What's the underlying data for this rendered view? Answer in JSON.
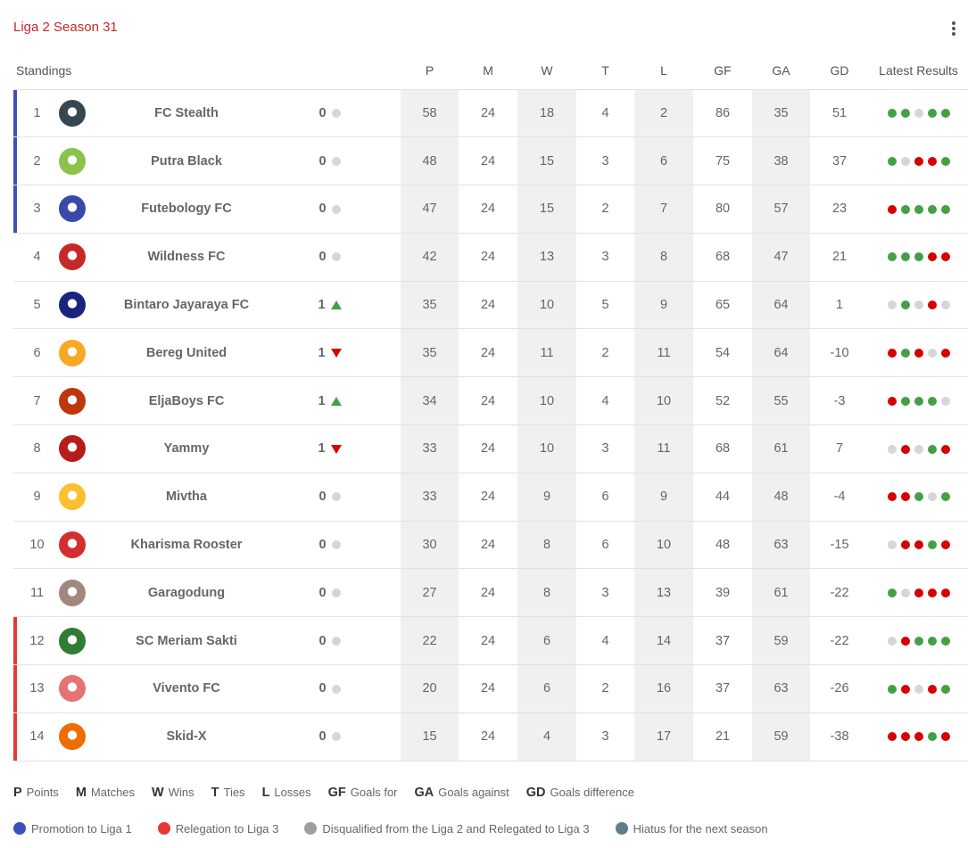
{
  "header": {
    "title": "Liga 2 Season 31"
  },
  "columns": {
    "label": "Standings",
    "p": "P",
    "m": "M",
    "w": "W",
    "t": "T",
    "l": "L",
    "gf": "GF",
    "ga": "GA",
    "gd": "GD",
    "results": "Latest Results"
  },
  "colors": {
    "promotion": "#3f51b5",
    "relegation": "#e53935",
    "disqualified": "#9e9e9e",
    "hiatus": "#607d8b",
    "win": "#43a047",
    "loss": "#d50000",
    "draw": "#d6d6d6"
  },
  "rows": [
    {
      "pos": "1",
      "team": "FC Stealth",
      "logo_color": "#37474f",
      "zone": "promotion",
      "change": "0",
      "trend": "same",
      "p": "58",
      "m": "24",
      "w": "18",
      "t": "4",
      "l": "2",
      "gf": "86",
      "ga": "35",
      "gd": "51",
      "results": [
        "W",
        "W",
        "D",
        "W",
        "W"
      ]
    },
    {
      "pos": "2",
      "team": "Putra Black",
      "logo_color": "#8bc34a",
      "zone": "promotion",
      "change": "0",
      "trend": "same",
      "p": "48",
      "m": "24",
      "w": "15",
      "t": "3",
      "l": "6",
      "gf": "75",
      "ga": "38",
      "gd": "37",
      "results": [
        "W",
        "D",
        "L",
        "L",
        "W"
      ]
    },
    {
      "pos": "3",
      "team": "Futebology FC",
      "logo_color": "#3949ab",
      "zone": "promotion",
      "change": "0",
      "trend": "same",
      "p": "47",
      "m": "24",
      "w": "15",
      "t": "2",
      "l": "7",
      "gf": "80",
      "ga": "57",
      "gd": "23",
      "results": [
        "L",
        "W",
        "W",
        "W",
        "W"
      ]
    },
    {
      "pos": "4",
      "team": "Wildness FC",
      "logo_color": "#c62828",
      "zone": "",
      "change": "0",
      "trend": "same",
      "p": "42",
      "m": "24",
      "w": "13",
      "t": "3",
      "l": "8",
      "gf": "68",
      "ga": "47",
      "gd": "21",
      "results": [
        "W",
        "W",
        "W",
        "L",
        "L"
      ]
    },
    {
      "pos": "5",
      "team": "Bintaro Jayaraya FC",
      "logo_color": "#1a237e",
      "zone": "",
      "change": "1",
      "trend": "up",
      "p": "35",
      "m": "24",
      "w": "10",
      "t": "5",
      "l": "9",
      "gf": "65",
      "ga": "64",
      "gd": "1",
      "results": [
        "D",
        "W",
        "D",
        "L",
        "D"
      ]
    },
    {
      "pos": "6",
      "team": "Bereg United",
      "logo_color": "#f9a825",
      "zone": "",
      "change": "1",
      "trend": "down",
      "p": "35",
      "m": "24",
      "w": "11",
      "t": "2",
      "l": "11",
      "gf": "54",
      "ga": "64",
      "gd": "-10",
      "results": [
        "L",
        "W",
        "L",
        "D",
        "L"
      ]
    },
    {
      "pos": "7",
      "team": "EljaBoys FC",
      "logo_color": "#bf360c",
      "zone": "",
      "change": "1",
      "trend": "up",
      "p": "34",
      "m": "24",
      "w": "10",
      "t": "4",
      "l": "10",
      "gf": "52",
      "ga": "55",
      "gd": "-3",
      "results": [
        "L",
        "W",
        "W",
        "W",
        "D"
      ]
    },
    {
      "pos": "8",
      "team": "Yammy",
      "logo_color": "#b71c1c",
      "zone": "",
      "change": "1",
      "trend": "down",
      "p": "33",
      "m": "24",
      "w": "10",
      "t": "3",
      "l": "11",
      "gf": "68",
      "ga": "61",
      "gd": "7",
      "results": [
        "D",
        "L",
        "D",
        "W",
        "L"
      ]
    },
    {
      "pos": "9",
      "team": "Mivtha",
      "logo_color": "#fbc02d",
      "zone": "",
      "change": "0",
      "trend": "same",
      "p": "33",
      "m": "24",
      "w": "9",
      "t": "6",
      "l": "9",
      "gf": "44",
      "ga": "48",
      "gd": "-4",
      "results": [
        "L",
        "L",
        "W",
        "D",
        "W"
      ]
    },
    {
      "pos": "10",
      "team": "Kharisma Rooster",
      "logo_color": "#d32f2f",
      "zone": "",
      "change": "0",
      "trend": "same",
      "p": "30",
      "m": "24",
      "w": "8",
      "t": "6",
      "l": "10",
      "gf": "48",
      "ga": "63",
      "gd": "-15",
      "results": [
        "D",
        "L",
        "L",
        "W",
        "L"
      ]
    },
    {
      "pos": "11",
      "team": "Garagodung",
      "logo_color": "#a1887f",
      "zone": "",
      "change": "0",
      "trend": "same",
      "p": "27",
      "m": "24",
      "w": "8",
      "t": "3",
      "l": "13",
      "gf": "39",
      "ga": "61",
      "gd": "-22",
      "results": [
        "W",
        "D",
        "L",
        "L",
        "L"
      ]
    },
    {
      "pos": "12",
      "team": "SC Meriam Sakti",
      "logo_color": "#2e7d32",
      "zone": "relegation",
      "change": "0",
      "trend": "same",
      "p": "22",
      "m": "24",
      "w": "6",
      "t": "4",
      "l": "14",
      "gf": "37",
      "ga": "59",
      "gd": "-22",
      "results": [
        "D",
        "L",
        "W",
        "W",
        "W"
      ]
    },
    {
      "pos": "13",
      "team": "Vivento FC",
      "logo_color": "#e57373",
      "zone": "relegation",
      "change": "0",
      "trend": "same",
      "p": "20",
      "m": "24",
      "w": "6",
      "t": "2",
      "l": "16",
      "gf": "37",
      "ga": "63",
      "gd": "-26",
      "results": [
        "W",
        "L",
        "D",
        "L",
        "W"
      ]
    },
    {
      "pos": "14",
      "team": "Skid-X",
      "logo_color": "#ef6c00",
      "zone": "relegation",
      "change": "0",
      "trend": "same",
      "p": "15",
      "m": "24",
      "w": "4",
      "t": "3",
      "l": "17",
      "gf": "21",
      "ga": "59",
      "gd": "-38",
      "results": [
        "L",
        "L",
        "L",
        "W",
        "L"
      ]
    }
  ],
  "abbreviations": [
    {
      "abbr": "P",
      "desc": "Points"
    },
    {
      "abbr": "M",
      "desc": "Matches"
    },
    {
      "abbr": "W",
      "desc": "Wins"
    },
    {
      "abbr": "T",
      "desc": "Ties"
    },
    {
      "abbr": "L",
      "desc": "Losses"
    },
    {
      "abbr": "GF",
      "desc": "Goals for"
    },
    {
      "abbr": "GA",
      "desc": "Goals against"
    },
    {
      "abbr": "GD",
      "desc": "Goals difference"
    }
  ],
  "zones_legend": [
    {
      "key": "promotion",
      "label": "Promotion to Liga 1"
    },
    {
      "key": "relegation",
      "label": "Relegation to Liga 3"
    },
    {
      "key": "disqualified",
      "label": "Disqualified from the Liga 2 and Relegated to Liga 3"
    },
    {
      "key": "hiatus",
      "label": "Hiatus for the next season"
    }
  ]
}
